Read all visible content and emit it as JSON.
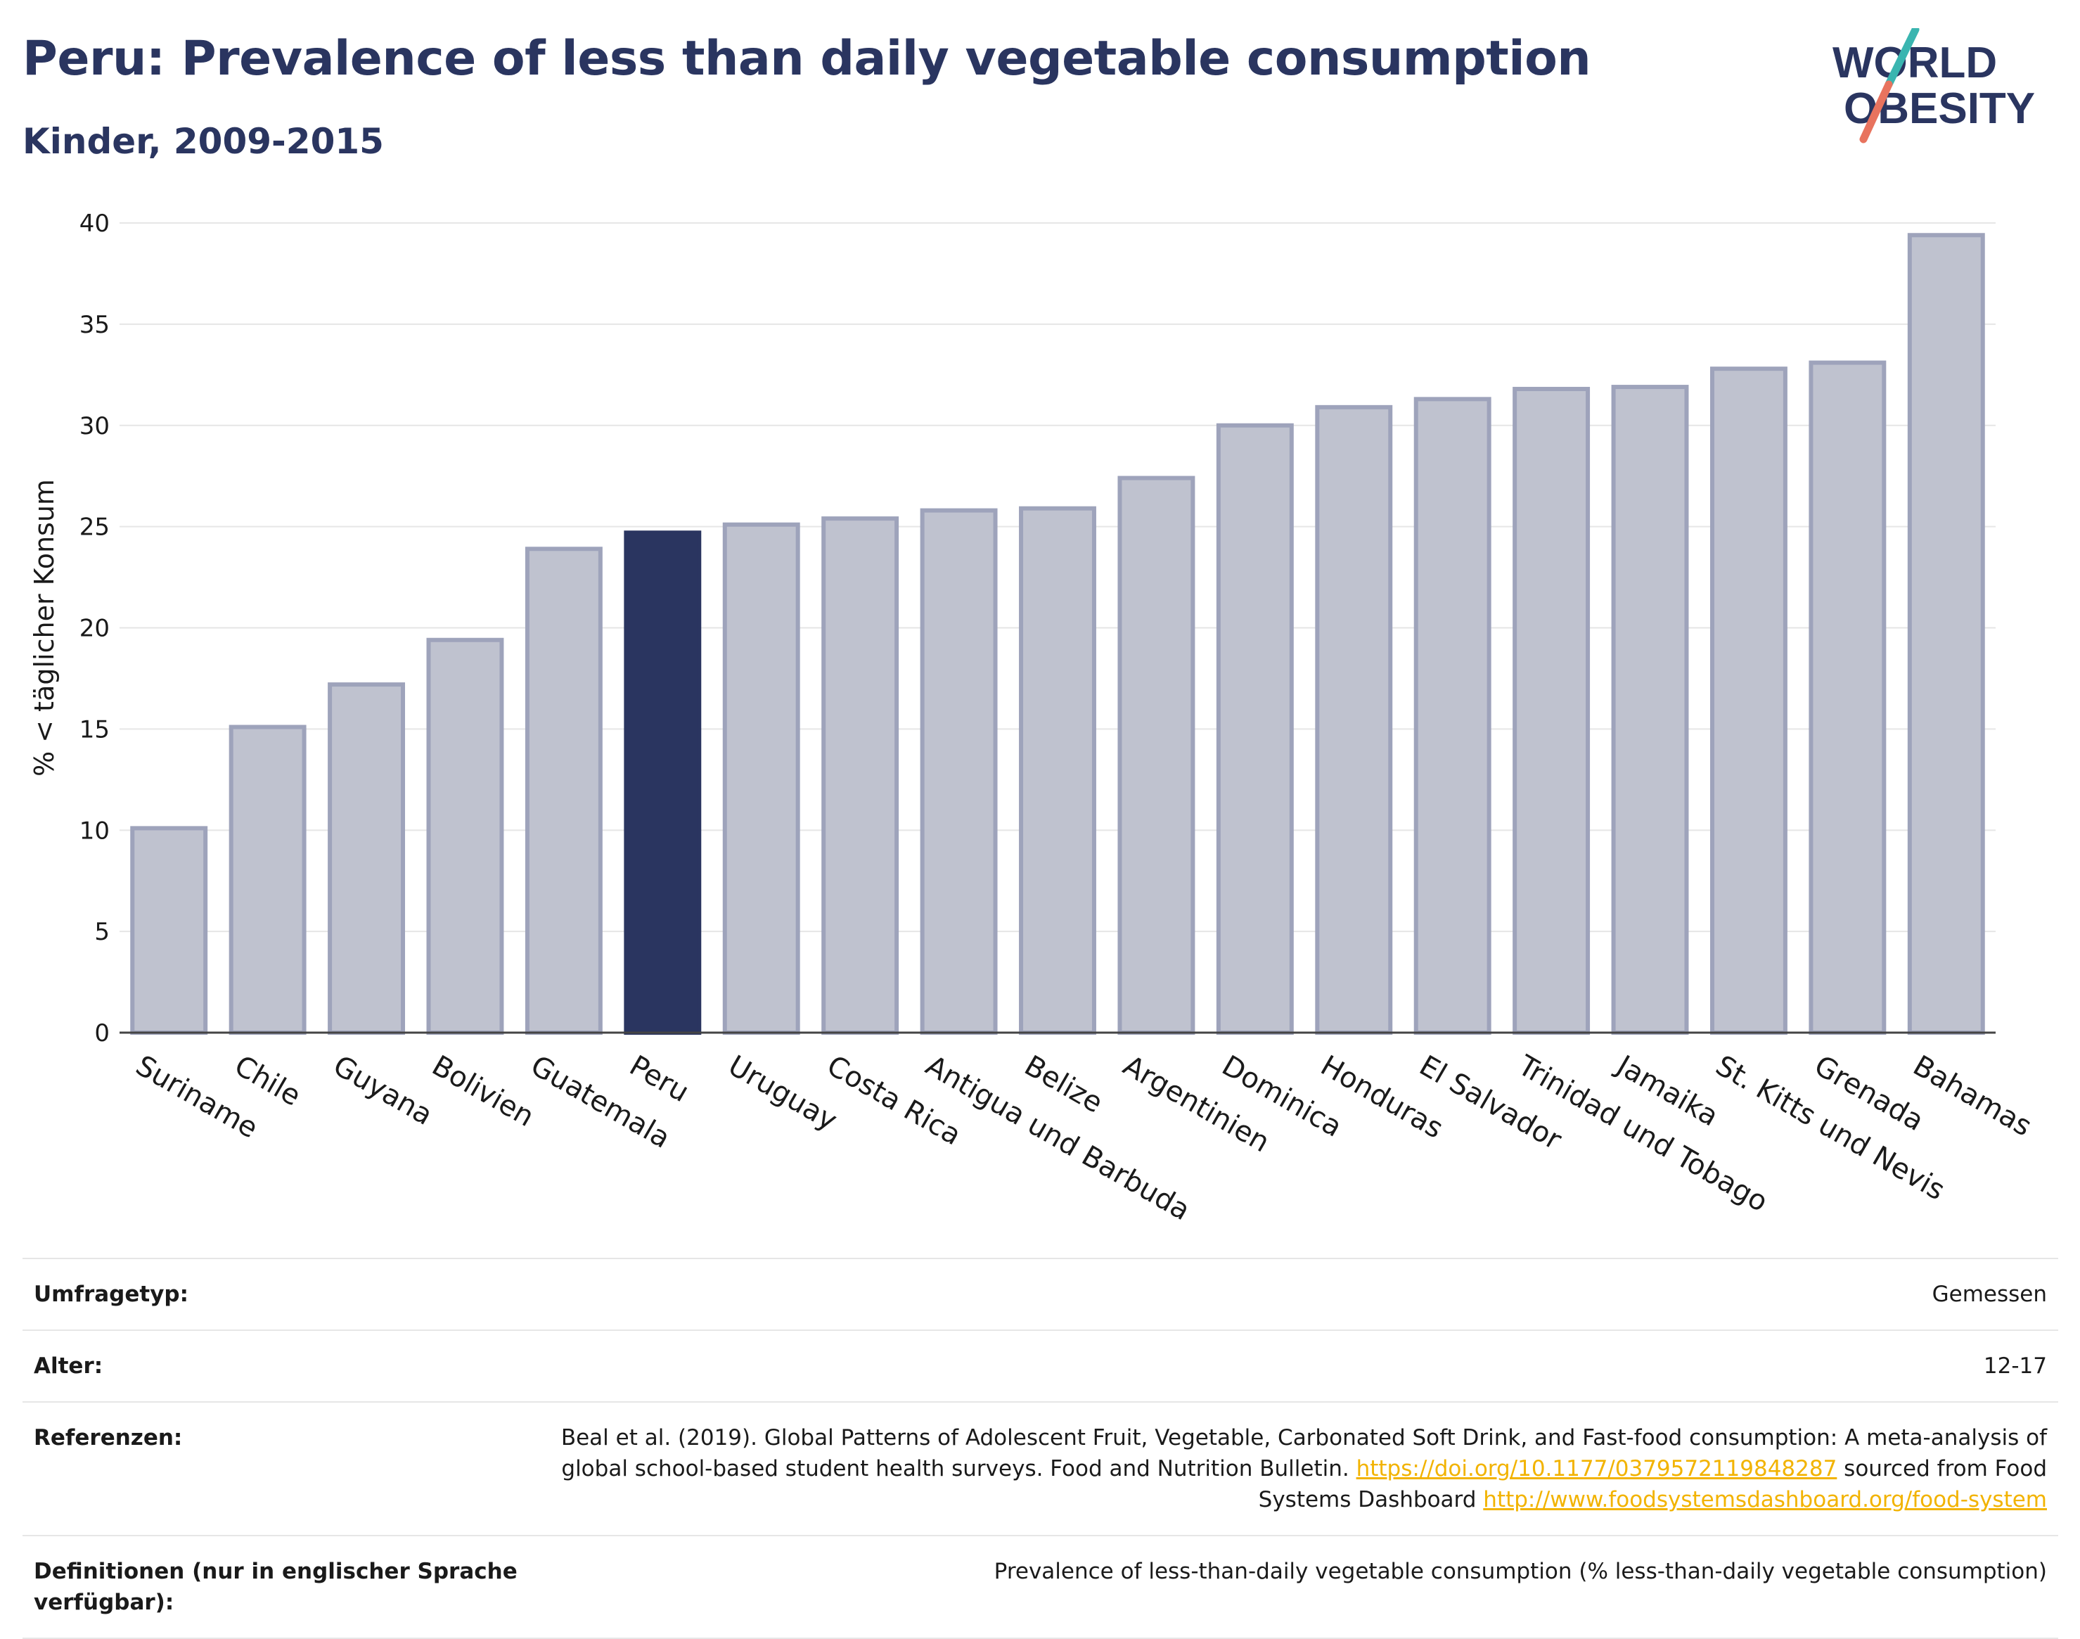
{
  "title": "Peru: Prevalence of less than daily vegetable consumption",
  "subtitle": "Kinder, 2009-2015",
  "logo": {
    "line1": "WORLD",
    "line2": "OBESITY",
    "colors": {
      "text": "#2a3560",
      "slash_top": "#3ab5b0",
      "slash_bottom": "#e8735e"
    }
  },
  "colors": {
    "bar": "#bfc2cf",
    "bar_border": "#9ea3bb",
    "highlight": "#2a3560",
    "grid": "#e6e6e6",
    "link": "#f2b300"
  },
  "chart_data": {
    "type": "bar",
    "categories": [
      "Suriname",
      "Chile",
      "Guyana",
      "Bolivien",
      "Guatemala",
      "Peru",
      "Uruguay",
      "Costa Rica",
      "Antigua und Barbuda",
      "Belize",
      "Argentinien",
      "Dominica",
      "Honduras",
      "El Salvador",
      "Trinidad und Tobago",
      "Jamaika",
      "St. Kitts und Nevis",
      "Grenada",
      "Bahamas"
    ],
    "values": [
      10.1,
      15.1,
      17.2,
      19.4,
      23.9,
      24.7,
      25.1,
      25.4,
      25.8,
      25.9,
      27.4,
      30.0,
      30.9,
      31.3,
      31.8,
      31.9,
      32.8,
      33.1,
      39.4
    ],
    "highlight": "Peru",
    "ylabel": "% < täglicher Konsum",
    "xlabel": "",
    "ylim": [
      0,
      40
    ],
    "yticks": [
      0,
      5,
      10,
      15,
      20,
      25,
      30,
      35,
      40
    ],
    "grid": true
  },
  "meta": [
    {
      "label": "Umfragetyp:",
      "value": "Gemessen"
    },
    {
      "label": "Alter:",
      "value": "12-17"
    },
    {
      "label": "Referenzen:",
      "value_parts": [
        "Beal et al. (2019). Global Patterns of Adolescent Fruit, Vegetable, Carbonated Soft Drink, and Fast-food consumption: A meta-analysis of global school-based student health surveys. Food and Nutrition Bulletin. ",
        "https://doi.org/10.1177/0379572119848287",
        " sourced from Food Systems Dashboard ",
        "http://www.foodsystemsdashboard.org/food-system"
      ]
    },
    {
      "label": "Definitionen (nur in englischer Sprache verfügbar):",
      "value": "Prevalence of less-than-daily vegetable consumption (% less-than-daily vegetable consumption)"
    }
  ]
}
